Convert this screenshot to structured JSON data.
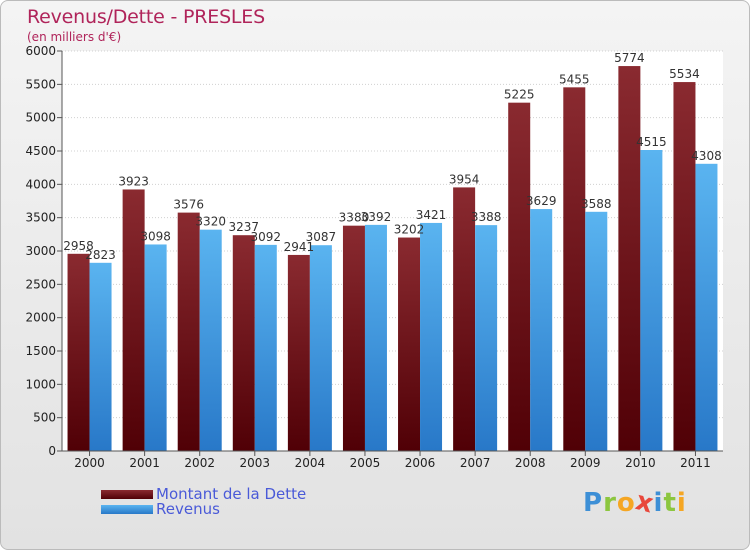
{
  "title": "Revenus/Dette - PRESLES",
  "subtitle": "(en milliers d'€)",
  "chart_data": {
    "type": "bar",
    "categories": [
      "2000",
      "2001",
      "2002",
      "2003",
      "2004",
      "2005",
      "2006",
      "2007",
      "2008",
      "2009",
      "2010",
      "2011"
    ],
    "series": [
      {
        "name": "Montant de la Dette",
        "values": [
          2958,
          3923,
          3576,
          3237,
          2941,
          3380,
          3202,
          3954,
          5225,
          5455,
          5774,
          5534
        ],
        "color": "#6e0f14"
      },
      {
        "name": "Revenus",
        "values": [
          2823,
          3098,
          3320,
          3092,
          3087,
          3392,
          3421,
          3388,
          3629,
          3588,
          4515,
          4308
        ],
        "color": "#3d9ee6"
      }
    ],
    "ylim": [
      0,
      6000
    ],
    "yticks": [
      0,
      500,
      1000,
      1500,
      2000,
      2500,
      3000,
      3500,
      4000,
      4500,
      5000,
      5500,
      6000
    ],
    "grid": true,
    "legend_position": "bottom-left"
  },
  "legend": {
    "debt_label": "Montant de la Dette",
    "revenue_label": "Revenus"
  },
  "logo": {
    "letters": [
      "P",
      "r",
      "o",
      "x",
      "i",
      "t",
      "i"
    ],
    "colors": [
      "#3d8fd6",
      "#8cc63f",
      "#f5a623",
      "#e8473b",
      "#3d8fd6",
      "#8cc63f",
      "#f5a623"
    ]
  }
}
